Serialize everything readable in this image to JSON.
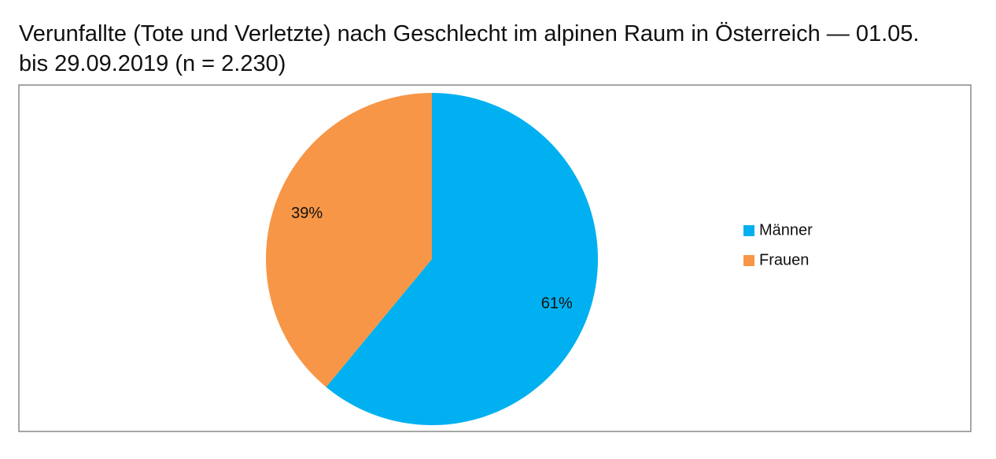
{
  "chart_data": {
    "type": "pie",
    "title": "Verunfallte (Tote und Verletzte) nach Geschlecht im alpinen Raum in Österreich — 01.05. bis 29.09.2019 (n = 2.230)",
    "categories": [
      "Männer",
      "Frauen"
    ],
    "values": [
      61,
      39
    ],
    "value_labels": [
      "61%",
      "39%"
    ],
    "colors": [
      "#00b0f0",
      "#f79646"
    ],
    "legend": "right"
  }
}
